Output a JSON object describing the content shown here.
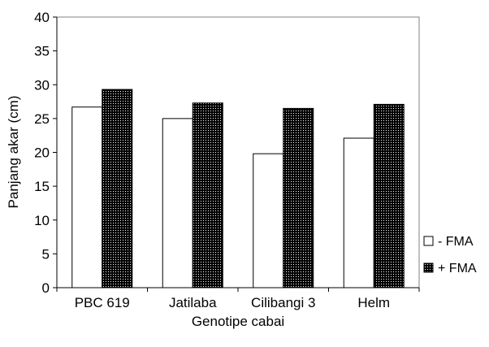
{
  "chart_data": {
    "type": "bar",
    "title": "",
    "xlabel": "Genotipe cabai",
    "ylabel": "Panjang akar (cm)",
    "ylim": [
      0,
      40
    ],
    "yticks": [
      0,
      5,
      10,
      15,
      20,
      25,
      30,
      35,
      40
    ],
    "grid": false,
    "legend_position": "right",
    "categories": [
      "PBC 619",
      "Jatilaba",
      "Cilibangi 3",
      "Helm"
    ],
    "series": [
      {
        "name": "- FMA",
        "values": [
          26.7,
          25.0,
          19.8,
          22.1
        ],
        "fill": "#ffffff",
        "pattern": "none"
      },
      {
        "name": "+ FMA",
        "values": [
          29.3,
          27.3,
          26.5,
          27.1
        ],
        "fill": "#000000",
        "pattern": "dotted"
      }
    ]
  }
}
